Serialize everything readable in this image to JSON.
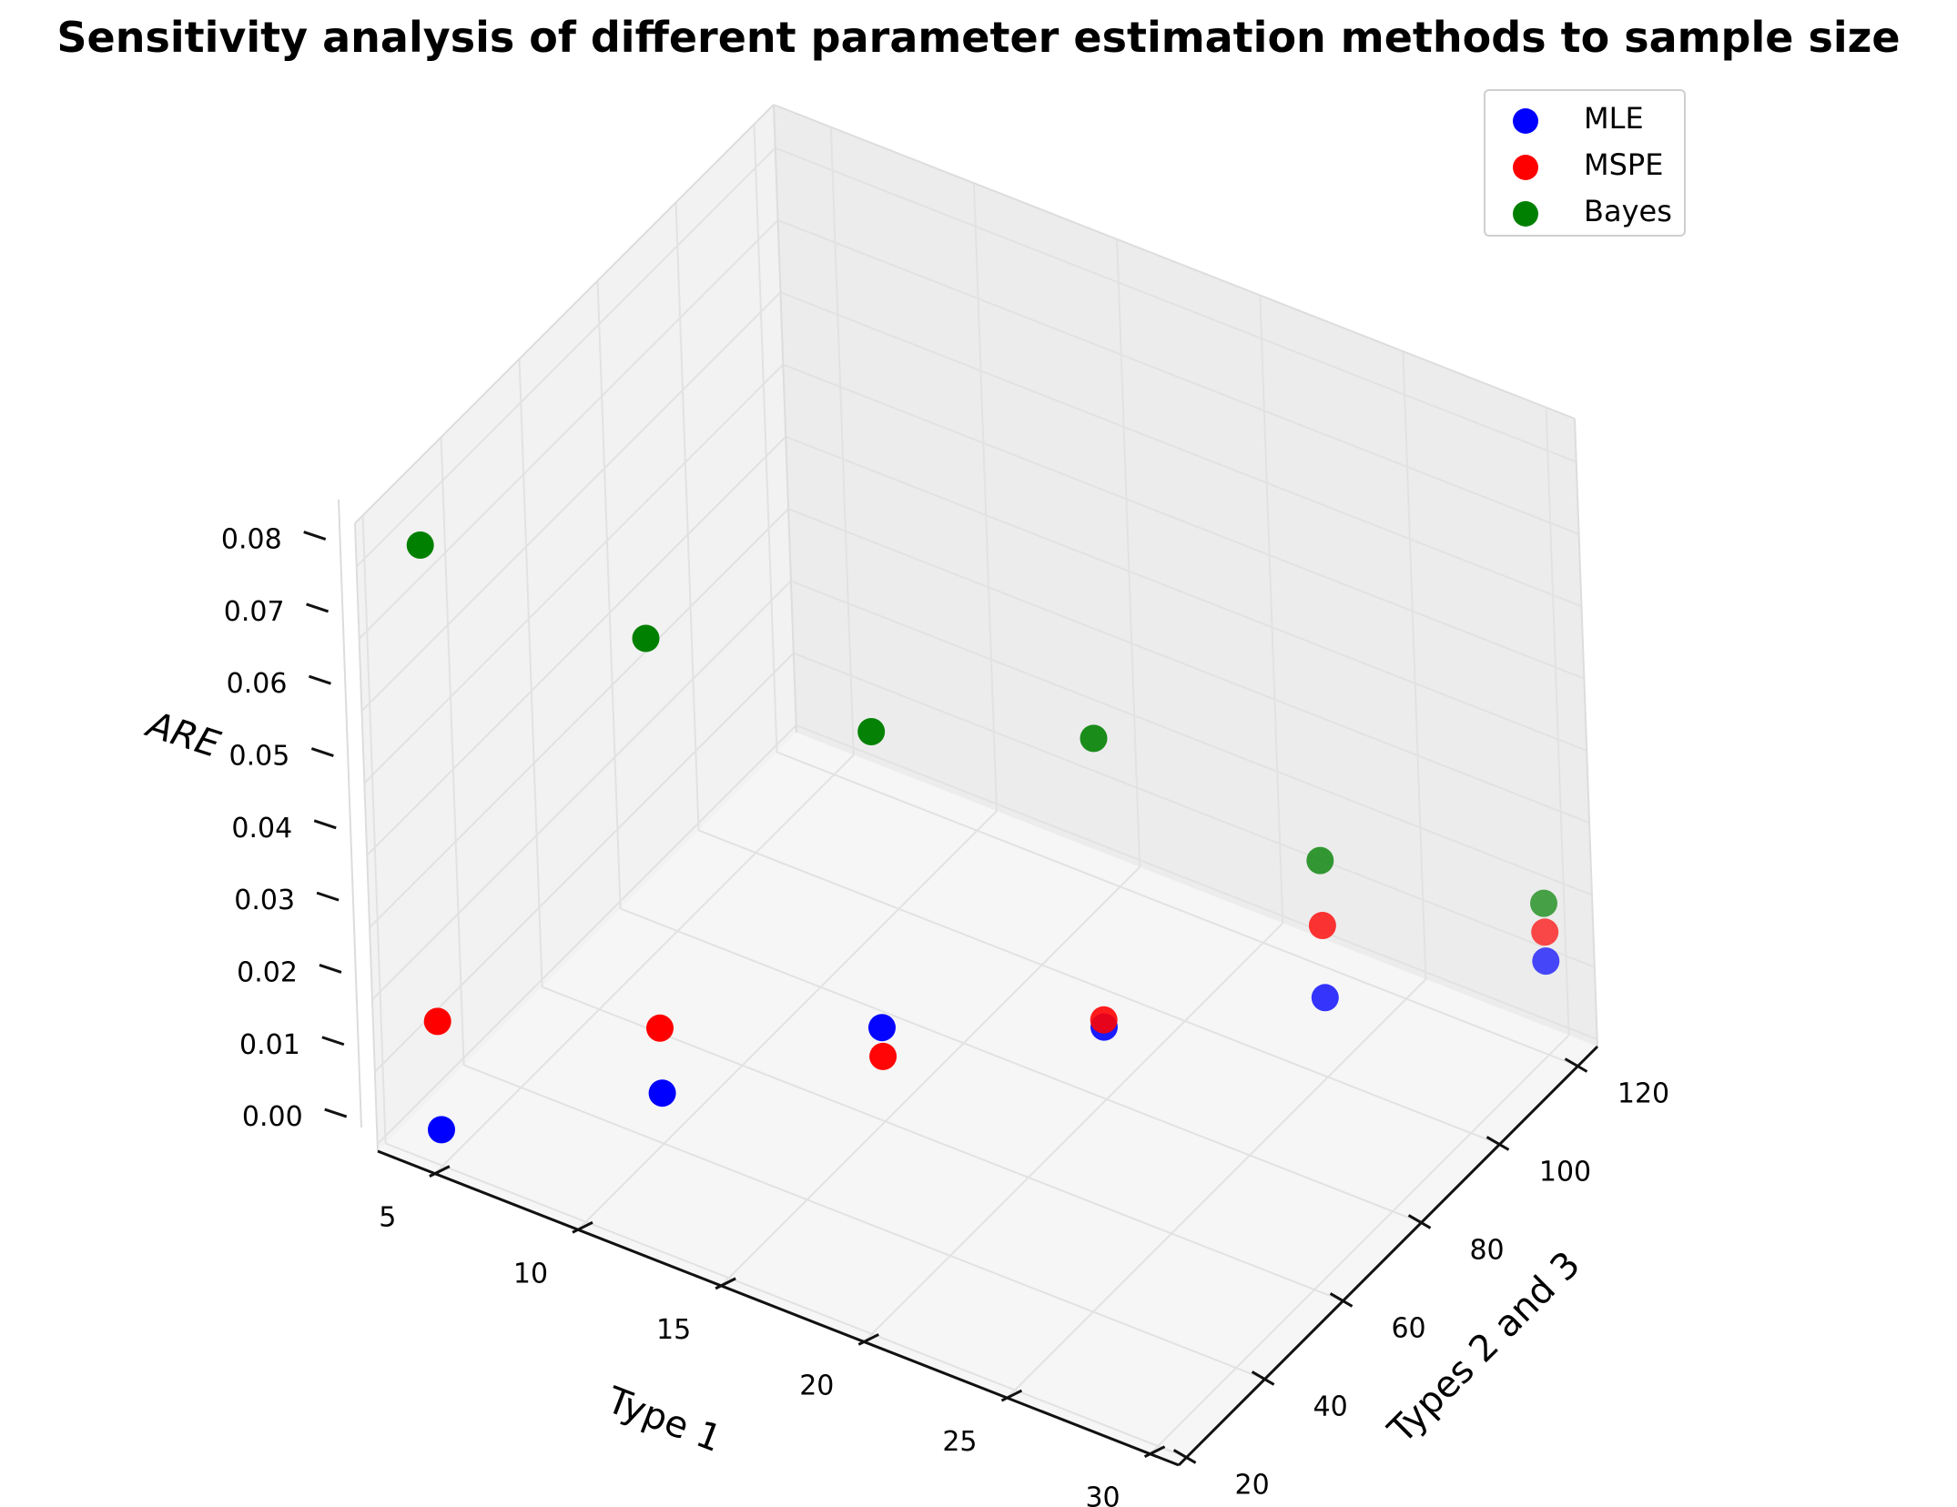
{
  "chart_data": {
    "type": "scatter",
    "title": "Sensitivity analysis of different parameter estimation methods to sample size",
    "xlabel": "Type 1",
    "ylabel": "Types 2 and 3",
    "zlabel": "ARE",
    "x_ticks": [
      "5",
      "10",
      "15",
      "20",
      "25",
      "30"
    ],
    "y_ticks": [
      "20",
      "40",
      "60",
      "80",
      "100",
      "120"
    ],
    "z_ticks": [
      "0.00",
      "0.01",
      "0.02",
      "0.03",
      "0.04",
      "0.05",
      "0.06",
      "0.07",
      "0.08"
    ],
    "xlim": [
      3,
      31
    ],
    "ylim": [
      18,
      125
    ],
    "zlim": [
      -0.001,
      0.086
    ],
    "legend_position": "top-right",
    "series": [
      {
        "name": "MLE",
        "color": "#0000ff",
        "points": [
          {
            "x": 5,
            "y": 20,
            "z": 0.004
          },
          {
            "x": 10,
            "y": 40,
            "z": 0.006
          },
          {
            "x": 15,
            "y": 60,
            "z": 0.012
          },
          {
            "x": 20,
            "y": 80,
            "z": 0.009
          },
          {
            "x": 25,
            "y": 100,
            "z": 0.01
          },
          {
            "x": 30,
            "y": 120,
            "z": 0.012
          }
        ]
      },
      {
        "name": "MSPE",
        "color": "#ff0000",
        "points": [
          {
            "x": 5,
            "y": 20,
            "z": 0.019
          },
          {
            "x": 10,
            "y": 40,
            "z": 0.015
          },
          {
            "x": 15,
            "y": 60,
            "z": 0.008
          },
          {
            "x": 20,
            "y": 80,
            "z": 0.01
          },
          {
            "x": 25,
            "y": 100,
            "z": 0.02
          },
          {
            "x": 30,
            "y": 120,
            "z": 0.016
          }
        ]
      },
      {
        "name": "Bayes",
        "color": "#008000",
        "points": [
          {
            "x": 5,
            "y": 20,
            "z": 0.085
          },
          {
            "x": 10,
            "y": 40,
            "z": 0.069
          },
          {
            "x": 15,
            "y": 60,
            "z": 0.053
          },
          {
            "x": 20,
            "y": 80,
            "z": 0.049
          },
          {
            "x": 25,
            "y": 100,
            "z": 0.029
          },
          {
            "x": 30,
            "y": 120,
            "z": 0.02
          }
        ]
      }
    ]
  }
}
